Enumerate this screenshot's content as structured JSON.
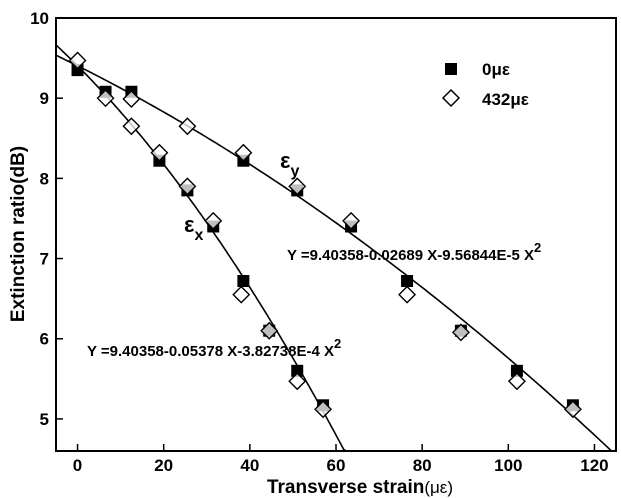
{
  "chart_data": {
    "type": "scatter",
    "xlabel": "Transverse strain",
    "xlabel_unit": "(με)",
    "ylabel": "Extinction ratio(dB)",
    "xlim": [
      -5,
      125
    ],
    "ylim": [
      4.6,
      10
    ],
    "x_ticks": [
      "0",
      "20",
      "40",
      "60",
      "80",
      "100",
      "120"
    ],
    "x_tick_values": [
      0,
      20,
      40,
      60,
      80,
      100,
      120
    ],
    "y_ticks": [
      "5",
      "6",
      "7",
      "8",
      "9",
      "10"
    ],
    "y_tick_values": [
      5,
      6,
      7,
      8,
      9,
      10
    ],
    "legend_position": "top-right",
    "series": [
      {
        "name": "0με",
        "marker": "filled-square",
        "points": [
          [
            0,
            9.35
          ],
          [
            6.5,
            9.08
          ],
          [
            12.5,
            9.08
          ],
          [
            19,
            8.22
          ],
          [
            25.5,
            7.85
          ],
          [
            31.5,
            7.4
          ],
          [
            38.5,
            6.72
          ],
          [
            44.5,
            6.1
          ],
          [
            51,
            5.6
          ],
          [
            57,
            5.17
          ],
          [
            38.5,
            8.22
          ],
          [
            51,
            7.85
          ],
          [
            63.5,
            7.4
          ],
          [
            76.5,
            6.72
          ],
          [
            89,
            6.1
          ],
          [
            102,
            5.6
          ],
          [
            115,
            5.17
          ]
        ]
      },
      {
        "name": "432με",
        "marker": "open-diamond",
        "points": [
          [
            0,
            9.47
          ],
          [
            6.5,
            9.0
          ],
          [
            12.5,
            8.99
          ],
          [
            12.5,
            8.65
          ],
          [
            19,
            8.32
          ],
          [
            25.5,
            7.9
          ],
          [
            31.5,
            7.47
          ],
          [
            38,
            6.55
          ],
          [
            44.5,
            6.1
          ],
          [
            51,
            5.47
          ],
          [
            57,
            5.12
          ],
          [
            25.5,
            8.65
          ],
          [
            38.5,
            8.32
          ],
          [
            51,
            7.9
          ],
          [
            63.5,
            7.47
          ],
          [
            76.5,
            6.55
          ],
          [
            89,
            6.08
          ],
          [
            102,
            5.47
          ],
          [
            115,
            5.12
          ]
        ]
      }
    ],
    "fits": [
      {
        "curve": "εx",
        "equation": "Y =9.40358-0.05378 X-3.82738E-4 X",
        "exponent": "2",
        "a": 9.40358,
        "b": -0.05378,
        "c": -0.000382738,
        "x_range": [
          -5,
          63.5
        ]
      },
      {
        "curve": "εy",
        "equation": "Y =9.40358-0.02689 X-9.56844E-5 X",
        "exponent": "2",
        "a": 9.40358,
        "b": -0.02689,
        "c": -9.56844e-05,
        "x_range": [
          -5,
          125
        ]
      }
    ],
    "curve_labels": [
      {
        "base": "ε",
        "sub": "y"
      },
      {
        "base": "ε",
        "sub": "x"
      }
    ]
  }
}
